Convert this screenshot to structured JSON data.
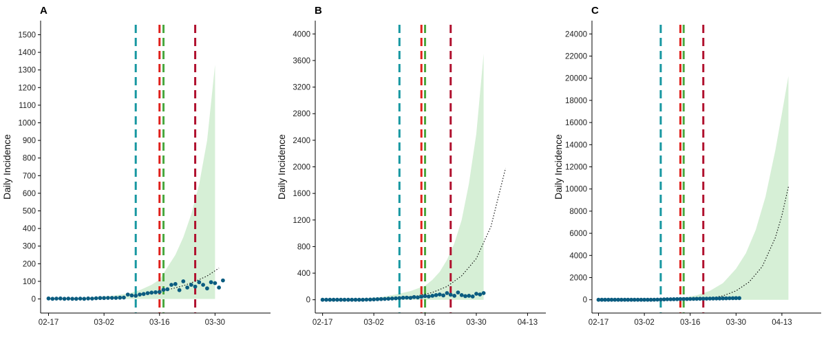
{
  "colors": {
    "band": "#d6efd6",
    "points": "#0b5c80",
    "trend": "#000000",
    "vline_teal": "#1797a1",
    "vline_red": "#e0201b",
    "vline_green": "#4aa83f",
    "vline_crimson": "#b0102e",
    "axis": "#000000"
  },
  "chart_data": [
    {
      "type": "scatter",
      "panel_label": "A",
      "ylabel": "Daily Incidence",
      "xlabel": "",
      "x_ticks": [
        "02-17",
        "03-02",
        "03-16",
        "03-30"
      ],
      "x_tick_days": [
        0,
        14,
        28,
        42
      ],
      "x_range_days": [
        -2,
        56
      ],
      "ylim": [
        -80,
        1580
      ],
      "y_ticks": [
        0,
        100,
        200,
        300,
        400,
        500,
        600,
        700,
        800,
        900,
        1000,
        1100,
        1200,
        1300,
        1400,
        1500
      ],
      "vertical_lines": [
        {
          "day": 22,
          "color": "teal"
        },
        {
          "day": 28,
          "color": "red"
        },
        {
          "day": 29,
          "color": "green"
        },
        {
          "day": 37,
          "color": "crimson"
        }
      ],
      "band": {
        "x_days": [
          0,
          10,
          16,
          20,
          23,
          26,
          28,
          30,
          32,
          34,
          36,
          38,
          40,
          42
        ],
        "lower": [
          0,
          0,
          0,
          0,
          0,
          0,
          0,
          0,
          0,
          0,
          0,
          0,
          0,
          0
        ],
        "upper": [
          0,
          8,
          18,
          30,
          50,
          80,
          110,
          180,
          250,
          350,
          480,
          650,
          900,
          1330
        ]
      },
      "trend": {
        "x_days": [
          22,
          25,
          28,
          31,
          34,
          37,
          40,
          43
        ],
        "y": [
          25,
          33,
          43,
          57,
          75,
          100,
          130,
          175
        ]
      },
      "points": {
        "x_days": [
          0,
          1,
          2,
          3,
          4,
          5,
          6,
          7,
          8,
          9,
          10,
          11,
          12,
          13,
          14,
          15,
          16,
          17,
          18,
          19,
          20,
          21,
          22,
          23,
          24,
          25,
          26,
          27,
          28,
          29,
          30,
          31,
          32,
          33,
          34,
          35,
          36,
          37,
          38,
          39,
          40,
          41,
          42,
          43,
          44
        ],
        "y": [
          3,
          1,
          2,
          3,
          1,
          2,
          1,
          1,
          2,
          1,
          3,
          2,
          4,
          5,
          5,
          6,
          6,
          6,
          7,
          8,
          25,
          20,
          18,
          25,
          28,
          33,
          36,
          38,
          40,
          52,
          55,
          80,
          85,
          50,
          100,
          65,
          80,
          70,
          95,
          80,
          60,
          95,
          90,
          65,
          105
        ]
      }
    },
    {
      "type": "scatter",
      "panel_label": "B",
      "ylabel": "Daily Incidence",
      "xlabel": "",
      "x_ticks": [
        "02-17",
        "03-02",
        "03-16",
        "03-30",
        "04-13"
      ],
      "x_tick_days": [
        0,
        14,
        28,
        42,
        56
      ],
      "x_range_days": [
        -2,
        61
      ],
      "ylim": [
        -200,
        4200
      ],
      "y_ticks": [
        0,
        400,
        800,
        1200,
        1600,
        2000,
        2400,
        2800,
        3200,
        3600,
        4000
      ],
      "vertical_lines": [
        {
          "day": 21,
          "color": "teal"
        },
        {
          "day": 27,
          "color": "red"
        },
        {
          "day": 28,
          "color": "green"
        },
        {
          "day": 35,
          "color": "crimson"
        }
      ],
      "band": {
        "x_days": [
          0,
          10,
          16,
          20,
          24,
          28,
          30,
          32,
          34,
          36,
          38,
          40,
          42,
          44
        ],
        "lower": [
          0,
          0,
          0,
          0,
          0,
          0,
          0,
          0,
          0,
          0,
          0,
          0,
          0,
          0
        ],
        "upper": [
          0,
          15,
          40,
          80,
          130,
          210,
          300,
          420,
          600,
          850,
          1200,
          1750,
          2500,
          3700
        ]
      },
      "trend": {
        "x_days": [
          22,
          26,
          30,
          34,
          38,
          42,
          46,
          50
        ],
        "y": [
          30,
          60,
          110,
          200,
          360,
          620,
          1100,
          1980
        ]
      },
      "points": {
        "x_days": [
          0,
          1,
          2,
          3,
          4,
          5,
          6,
          7,
          8,
          9,
          10,
          11,
          12,
          13,
          14,
          15,
          16,
          17,
          18,
          19,
          20,
          21,
          22,
          23,
          24,
          25,
          26,
          27,
          28,
          29,
          30,
          31,
          32,
          33,
          34,
          35,
          36,
          37,
          38,
          39,
          40,
          41,
          42,
          43,
          44
        ],
        "y": [
          0,
          0,
          0,
          0,
          0,
          0,
          0,
          0,
          0,
          0,
          0,
          0,
          2,
          3,
          5,
          8,
          10,
          12,
          15,
          18,
          22,
          25,
          30,
          32,
          28,
          40,
          35,
          45,
          55,
          50,
          60,
          70,
          80,
          65,
          100,
          75,
          60,
          110,
          70,
          55,
          60,
          50,
          90,
          80,
          100
        ]
      }
    },
    {
      "type": "scatter",
      "panel_label": "C",
      "ylabel": "Daily Incidence",
      "xlabel": "",
      "x_ticks": [
        "02-17",
        "03-02",
        "03-16",
        "03-30",
        "04-13"
      ],
      "x_tick_days": [
        0,
        14,
        28,
        42,
        56
      ],
      "x_range_days": [
        -2,
        68
      ],
      "ylim": [
        -1200,
        25200
      ],
      "y_ticks": [
        0,
        2000,
        4000,
        6000,
        8000,
        10000,
        12000,
        14000,
        16000,
        18000,
        20000,
        22000,
        24000
      ],
      "vertical_lines": [
        {
          "day": 19,
          "color": "teal"
        },
        {
          "day": 25,
          "color": "red"
        },
        {
          "day": 26,
          "color": "green"
        },
        {
          "day": 32,
          "color": "crimson"
        }
      ],
      "band": {
        "x_days": [
          0,
          10,
          20,
          26,
          30,
          34,
          38,
          42,
          45,
          48,
          51,
          54,
          56,
          58
        ],
        "lower": [
          0,
          0,
          0,
          0,
          0,
          0,
          0,
          0,
          0,
          0,
          0,
          0,
          0,
          0
        ],
        "upper": [
          0,
          20,
          80,
          200,
          400,
          800,
          1500,
          2800,
          4200,
          6300,
          9300,
          13500,
          16800,
          20200
        ]
      },
      "trend": {
        "x_days": [
          30,
          34,
          38,
          42,
          46,
          50,
          54,
          56,
          58
        ],
        "y": [
          60,
          150,
          350,
          800,
          1600,
          3000,
          5600,
          7600,
          10200
        ]
      },
      "points": {
        "x_days": [
          0,
          1,
          2,
          3,
          4,
          5,
          6,
          7,
          8,
          9,
          10,
          11,
          12,
          13,
          14,
          15,
          16,
          17,
          18,
          19,
          20,
          21,
          22,
          23,
          24,
          25,
          26,
          27,
          28,
          29,
          30,
          31,
          32,
          33,
          34,
          35,
          36,
          37,
          38,
          39,
          40,
          41,
          42,
          43
        ],
        "y": [
          0,
          0,
          0,
          0,
          0,
          0,
          0,
          0,
          0,
          0,
          0,
          0,
          0,
          0,
          0,
          0,
          0,
          5,
          10,
          20,
          30,
          40,
          45,
          50,
          55,
          60,
          65,
          70,
          75,
          80,
          85,
          90,
          95,
          100,
          105,
          110,
          115,
          120,
          125,
          130,
          135,
          140,
          145,
          150
        ]
      }
    }
  ]
}
